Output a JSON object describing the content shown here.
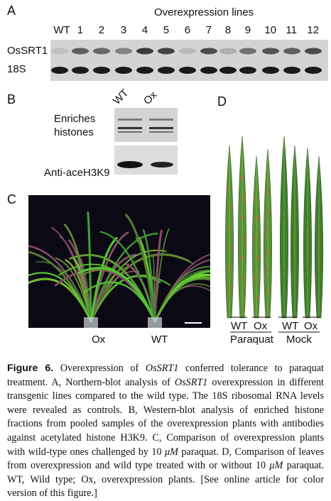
{
  "panel_a": {
    "letter": "A",
    "header": "Overexpression lines",
    "lanes": [
      "WT",
      "1",
      "2",
      "3",
      "4",
      "5",
      "6",
      "7",
      "8",
      "9",
      "10",
      "11",
      "12"
    ],
    "row_labels": [
      "OsSRT1",
      "18S"
    ],
    "signal": [
      0.1,
      0.65,
      0.6,
      0.45,
      0.85,
      0.8,
      0.15,
      0.75,
      0.2,
      0.55,
      0.7,
      0.65,
      0.75
    ]
  },
  "panel_b": {
    "letter": "B",
    "lanes": [
      "WT",
      "Ox"
    ],
    "label_enriches": "Enriches",
    "label_histones": "histones",
    "label_anti": "Anti-aceH3K9"
  },
  "panel_c": {
    "letter": "C",
    "labels": [
      "Ox",
      "WT"
    ]
  },
  "panel_d": {
    "letter": "D",
    "pair_labels": [
      "WT",
      "Ox",
      "WT",
      "Ox"
    ],
    "groups": [
      "Paraquat",
      "Mock"
    ]
  },
  "caption": {
    "title": "Figure 6.",
    "p1": " Overexpression of ",
    "gene1": "OsSRT1",
    "p2": " conferred tolerance to paraquat treatment. A, Northern-blot analysis of ",
    "gene2": "OsSRT1",
    "p3": " overexpression in different transgenic lines compared to the wild type. The 18S ribosomal RNA levels were revealed as controls. B, Western-blot analysis of enriched histone fractions from pooled samples of the overexpression plants with antibodies against acetylated histone H3K9. C, Comparison of overexpression plants with wild-type ones challenged by 10 ",
    "unit1": "μM",
    "p4": " paraquat. D, Comparison of leaves from overexpression and wild type treated with or without 10 ",
    "unit2": "μM",
    "p5": " paraquat. WT, Wild type; Ox, overexpression plants. [See online article for color version of this figure.]"
  },
  "colors": {
    "blot_bg": "#d4d4d4",
    "band": "#1e1e1e",
    "photo_bg": "#0b0a14",
    "leaf": "#4e8a35",
    "leaf_dark": "#2f5e22"
  }
}
